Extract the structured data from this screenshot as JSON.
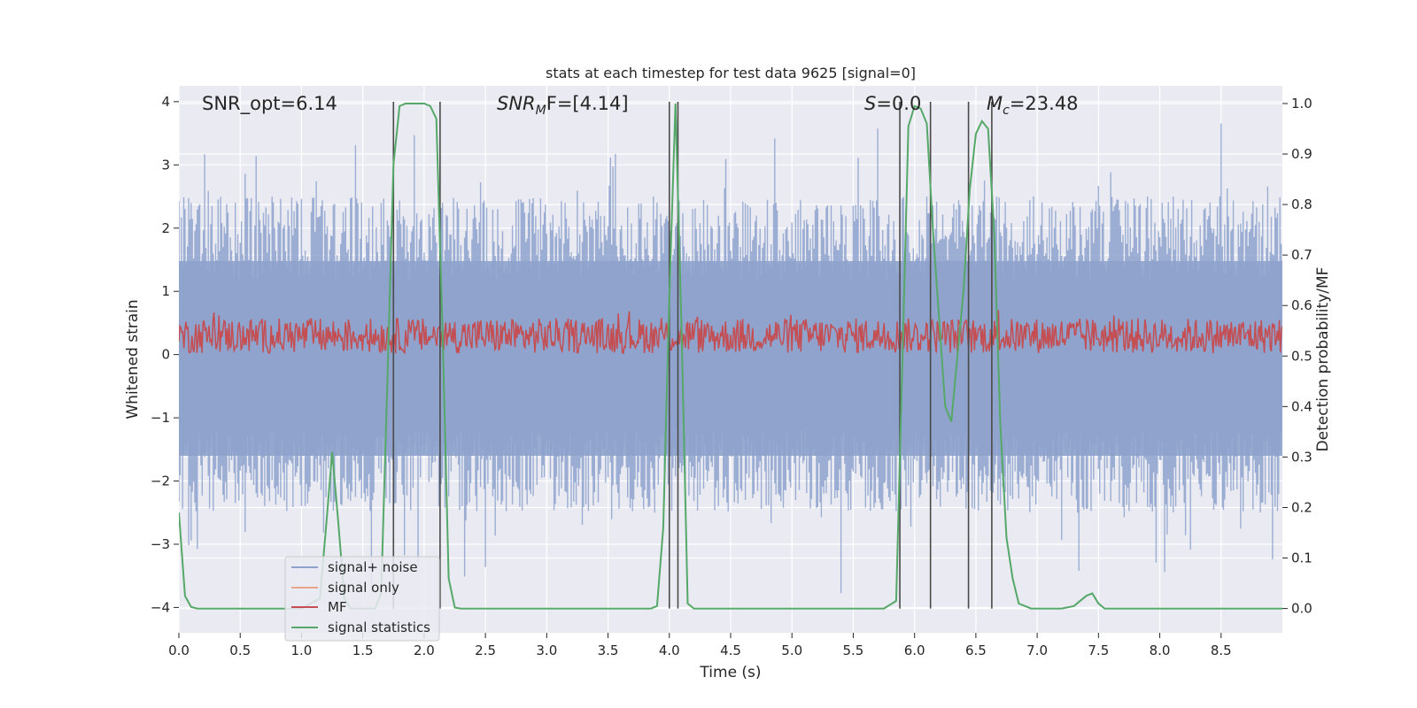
{
  "chart_data": {
    "type": "line",
    "title": "stats at each timestep for test data 9625 [signal=0]",
    "xlabel": "Time (s)",
    "ylabel_left": "Whitened strain",
    "ylabel_right": "Detection probability/MF",
    "xlim": [
      0.0,
      9.0
    ],
    "ylim_left": [
      -4.4,
      4.25
    ],
    "ylim_right": [
      -0.048,
      1.035
    ],
    "x_ticks": [
      "0.0",
      "0.5",
      "1.0",
      "1.5",
      "2.0",
      "2.5",
      "3.0",
      "3.5",
      "4.0",
      "4.5",
      "5.0",
      "5.5",
      "6.0",
      "6.5",
      "7.0",
      "7.5",
      "8.0",
      "8.5"
    ],
    "y_ticks_left": [
      "−4",
      "−3",
      "−2",
      "−1",
      "0",
      "1",
      "2",
      "3",
      "4"
    ],
    "y_ticks_right": [
      "0.0",
      "0.1",
      "0.2",
      "0.3",
      "0.4",
      "0.5",
      "0.6",
      "0.7",
      "0.8",
      "0.9",
      "1.0"
    ],
    "grid": true,
    "legend_position": "lower-left",
    "annotations": [
      {
        "text": "SNR_opt=6.14"
      },
      {
        "text": "SNR_MF=[4.14]",
        "base": "SNR",
        "sub": "M",
        "rest": "F=[4.14]"
      },
      {
        "text": "S=0.0",
        "base": "S",
        "rest": "=0.0"
      },
      {
        "text": "M_c=23.48",
        "base": "M",
        "sub": "c",
        "rest": "=23.48"
      }
    ],
    "series": [
      {
        "name": "signal+ noise",
        "color": "#8da2cc",
        "axis": "left",
        "style": "dense noise, roughly ±2.5, peaks to ±3.7"
      },
      {
        "name": "signal only",
        "color": "#e8a58c",
        "axis": "left"
      },
      {
        "name": "MF",
        "color": "#c44e52",
        "axis": "right",
        "style": "noisy band between 0.50 and 0.59"
      },
      {
        "name": "signal statistics",
        "color": "#55a868",
        "axis": "right",
        "x": [
          0.0,
          0.05,
          0.1,
          0.15,
          0.2,
          0.5,
          1.0,
          1.15,
          1.2,
          1.25,
          1.3,
          1.35,
          1.4,
          1.5,
          1.6,
          1.65,
          1.7,
          1.75,
          1.8,
          1.85,
          1.9,
          2.0,
          2.05,
          2.1,
          2.15,
          2.2,
          2.25,
          2.3,
          3.0,
          3.5,
          3.85,
          3.9,
          3.95,
          4.0,
          4.05,
          4.1,
          4.15,
          4.2,
          4.25,
          4.5,
          5.0,
          5.5,
          5.75,
          5.85,
          5.9,
          5.95,
          6.0,
          6.05,
          6.1,
          6.15,
          6.25,
          6.3,
          6.4,
          6.45,
          6.5,
          6.55,
          6.6,
          6.65,
          6.7,
          6.75,
          6.8,
          6.85,
          6.95,
          7.2,
          7.3,
          7.4,
          7.45,
          7.5,
          7.55,
          8.0,
          9.0
        ],
        "y": [
          0.19,
          0.025,
          0.003,
          0.0,
          0.0,
          0.0,
          0.0,
          0.02,
          0.16,
          0.31,
          0.17,
          0.02,
          0.0,
          0.0,
          0.0,
          0.03,
          0.45,
          0.88,
          0.995,
          1.0,
          1.0,
          1.0,
          0.995,
          0.97,
          0.55,
          0.06,
          0.002,
          0.0,
          0.0,
          0.0,
          0.0,
          0.005,
          0.16,
          0.62,
          1.0,
          0.55,
          0.01,
          0.0,
          0.0,
          0.0,
          0.0,
          0.0,
          0.0,
          0.015,
          0.48,
          0.955,
          0.995,
          0.99,
          0.96,
          0.75,
          0.4,
          0.37,
          0.63,
          0.83,
          0.94,
          0.965,
          0.95,
          0.74,
          0.36,
          0.14,
          0.06,
          0.01,
          0.0,
          0.0,
          0.005,
          0.025,
          0.03,
          0.01,
          0.0,
          0.0,
          0.0
        ]
      }
    ],
    "vertical_lines_x": [
      1.75,
      2.13,
      4.0,
      4.07,
      5.88,
      6.13,
      6.44,
      6.63
    ]
  }
}
